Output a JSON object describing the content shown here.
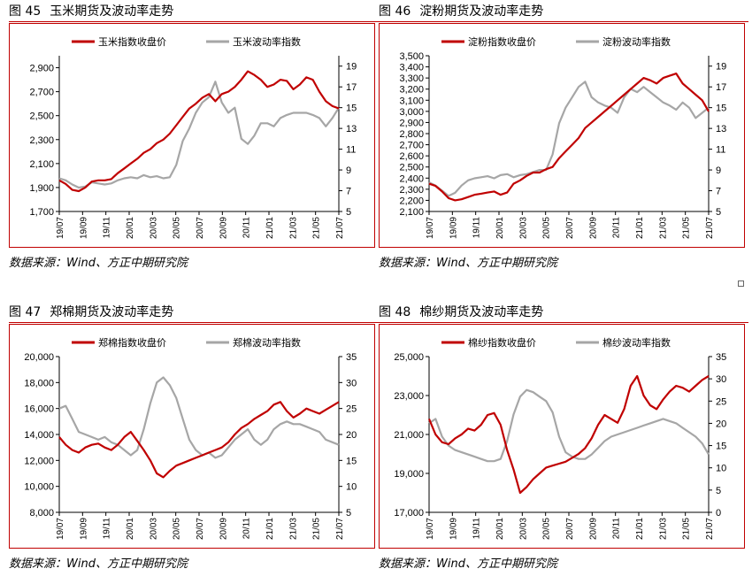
{
  "source_label": "数据来源：Wind、方正中期研究院",
  "chart_data": [
    {
      "type": "line",
      "fig_num": "图 45",
      "title": "玉米期货及波动率走势",
      "x_ticks": [
        "19/07",
        "19/09",
        "19/11",
        "20/01",
        "20/03",
        "20/05",
        "20/07",
        "20/09",
        "20/11",
        "21/01",
        "21/03",
        "21/05",
        "21/07"
      ],
      "y_left": {
        "ticks": [
          "1,700",
          "1,900",
          "2,100",
          "2,300",
          "2,500",
          "2,700",
          "2,900"
        ],
        "range": [
          1700,
          3000
        ]
      },
      "y_right": {
        "ticks": [
          "5",
          "7",
          "9",
          "11",
          "13",
          "15",
          "17",
          "19"
        ],
        "range": [
          5,
          20
        ]
      },
      "series": [
        {
          "name": "玉米指数收盘价",
          "axis": "left",
          "color": "#c00000",
          "values": [
            1960,
            1930,
            1880,
            1870,
            1900,
            1950,
            1960,
            1960,
            1970,
            2020,
            2060,
            2100,
            2140,
            2190,
            2220,
            2270,
            2300,
            2350,
            2420,
            2490,
            2560,
            2600,
            2650,
            2680,
            2620,
            2680,
            2700,
            2740,
            2800,
            2870,
            2840,
            2800,
            2740,
            2760,
            2800,
            2790,
            2720,
            2760,
            2820,
            2800,
            2700,
            2620,
            2580,
            2560
          ]
        },
        {
          "name": "玉米波动率指数",
          "axis": "right",
          "color": "#a6a6a6",
          "values": [
            8.2,
            8.0,
            7.6,
            7.3,
            7.4,
            7.8,
            7.7,
            7.6,
            7.7,
            8.0,
            8.2,
            8.3,
            8.2,
            8.5,
            8.3,
            8.4,
            8.2,
            8.3,
            9.5,
            11.8,
            13.0,
            14.5,
            15.5,
            16.0,
            17.5,
            15.5,
            14.5,
            15.0,
            12.0,
            11.5,
            12.3,
            13.5,
            13.5,
            13.2,
            14.0,
            14.3,
            14.5,
            14.5,
            14.5,
            14.3,
            14.0,
            13.2,
            14.0,
            15.0
          ]
        }
      ]
    },
    {
      "type": "line",
      "fig_num": "图 46",
      "title": "淀粉期货及波动率走势",
      "x_ticks": [
        "19/07",
        "19/09",
        "19/11",
        "20/01",
        "20/03",
        "20/05",
        "20/07",
        "20/09",
        "20/11",
        "21/01",
        "21/03",
        "21/05",
        "21/07"
      ],
      "y_left": {
        "ticks": [
          "2,100",
          "2,200",
          "2,300",
          "2,400",
          "2,500",
          "2,600",
          "2,700",
          "2,800",
          "2,900",
          "3,000",
          "3,100",
          "3,200",
          "3,300",
          "3,400",
          "3,500"
        ],
        "range": [
          2100,
          3500
        ]
      },
      "y_right": {
        "ticks": [
          "5",
          "7",
          "9",
          "11",
          "13",
          "15",
          "17",
          "19"
        ],
        "range": [
          5,
          20
        ]
      },
      "series": [
        {
          "name": "淀粉指数收盘价",
          "axis": "left",
          "color": "#c00000",
          "values": [
            2350,
            2330,
            2280,
            2220,
            2200,
            2210,
            2230,
            2250,
            2260,
            2270,
            2280,
            2250,
            2270,
            2350,
            2380,
            2420,
            2450,
            2450,
            2480,
            2500,
            2580,
            2640,
            2700,
            2760,
            2850,
            2900,
            2950,
            3000,
            3050,
            3100,
            3150,
            3200,
            3250,
            3300,
            3280,
            3250,
            3300,
            3320,
            3340,
            3250,
            3200,
            3150,
            3100,
            3000
          ]
        },
        {
          "name": "淀粉波动率指数",
          "axis": "right",
          "color": "#a6a6a6",
          "values": [
            7.8,
            7.5,
            7.0,
            6.5,
            6.8,
            7.5,
            8.0,
            8.2,
            8.3,
            8.4,
            8.2,
            8.5,
            8.6,
            8.3,
            8.5,
            8.6,
            8.8,
            9.0,
            9.0,
            10.5,
            13.5,
            15.0,
            16.0,
            17.0,
            17.5,
            16.0,
            15.5,
            15.2,
            15.0,
            14.5,
            16.0,
            16.8,
            16.5,
            17.0,
            16.5,
            16.0,
            15.5,
            15.2,
            14.8,
            15.5,
            15.0,
            14.0,
            14.5,
            15.0
          ]
        }
      ]
    },
    {
      "type": "line",
      "fig_num": "图 47",
      "title": "郑棉期货及波动率走势",
      "x_ticks": [
        "19/07",
        "19/09",
        "19/11",
        "20/01",
        "20/03",
        "20/05",
        "20/07",
        "20/09",
        "20/11",
        "21/01",
        "21/03",
        "21/05",
        "21/07"
      ],
      "y_left": {
        "ticks": [
          "8,000",
          "10,000",
          "12,000",
          "14,000",
          "16,000",
          "18,000",
          "20,000"
        ],
        "range": [
          8000,
          20000
        ]
      },
      "y_right": {
        "ticks": [
          "5",
          "10",
          "15",
          "20",
          "25",
          "30",
          "35"
        ],
        "range": [
          5,
          35
        ]
      },
      "series": [
        {
          "name": "郑棉指数收盘价",
          "axis": "left",
          "color": "#c00000",
          "values": [
            13800,
            13200,
            12800,
            12600,
            13000,
            13200,
            13300,
            13000,
            12800,
            13200,
            13800,
            14200,
            13500,
            12800,
            12000,
            11000,
            10700,
            11200,
            11600,
            11800,
            12000,
            12200,
            12400,
            12600,
            12800,
            13000,
            13400,
            14000,
            14500,
            14800,
            15200,
            15500,
            15800,
            16300,
            16500,
            15800,
            15300,
            15600,
            16000,
            15800,
            15600,
            15900,
            16200,
            16500
          ]
        },
        {
          "name": "郑棉波动率指数",
          "axis": "right",
          "color": "#a6a6a6",
          "values": [
            25.0,
            25.5,
            23.0,
            20.5,
            20.0,
            19.5,
            19.0,
            19.5,
            18.5,
            18.0,
            17.0,
            16.0,
            17.0,
            21.0,
            26.0,
            30.0,
            31.0,
            29.5,
            27.0,
            23.0,
            19.0,
            17.0,
            16.0,
            16.5,
            15.5,
            16.0,
            17.5,
            19.0,
            20.0,
            21.0,
            19.0,
            18.0,
            19.0,
            21.0,
            22.0,
            22.5,
            22.0,
            22.0,
            21.5,
            21.0,
            20.5,
            19.0,
            18.5,
            18.0
          ]
        }
      ]
    },
    {
      "type": "line",
      "fig_num": "图 48",
      "title": "棉纱期货及波动率走势",
      "x_ticks": [
        "19/07",
        "19/09",
        "19/11",
        "20/01",
        "20/03",
        "20/05",
        "20/07",
        "20/09",
        "20/11",
        "21/01",
        "21/03",
        "21/05",
        "21/07"
      ],
      "y_left": {
        "ticks": [
          "17,000",
          "19,000",
          "21,000",
          "23,000",
          "25,000"
        ],
        "range": [
          17000,
          25000
        ]
      },
      "y_right": {
        "ticks": [
          "0",
          "5",
          "10",
          "15",
          "20",
          "25",
          "30",
          "35"
        ],
        "range": [
          0,
          35
        ]
      },
      "series": [
        {
          "name": "棉纱指数收盘价",
          "axis": "left",
          "color": "#c00000",
          "values": [
            21800,
            21000,
            20600,
            20500,
            20800,
            21000,
            21300,
            21200,
            21500,
            22000,
            22100,
            21500,
            20200,
            19200,
            18000,
            18300,
            18700,
            19000,
            19300,
            19400,
            19500,
            19600,
            19800,
            20000,
            20300,
            20800,
            21500,
            22000,
            21800,
            21600,
            22300,
            23500,
            24000,
            23000,
            22500,
            22300,
            22800,
            23200,
            23500,
            23400,
            23200,
            23500,
            23800,
            24000
          ]
        },
        {
          "name": "棉纱波动率指数",
          "axis": "right",
          "color": "#a6a6a6",
          "values": [
            20.0,
            21.0,
            17.0,
            15.0,
            14.0,
            13.5,
            13.0,
            12.5,
            12.0,
            11.5,
            11.5,
            12.0,
            16.0,
            22.0,
            26.0,
            27.5,
            27.0,
            26.0,
            25.0,
            22.5,
            17.0,
            13.5,
            12.5,
            12.0,
            12.0,
            13.0,
            14.5,
            16.0,
            17.0,
            17.5,
            18.0,
            18.5,
            19.0,
            19.5,
            20.0,
            20.5,
            21.0,
            20.5,
            20.0,
            19.0,
            18.0,
            17.0,
            15.5,
            13.0
          ]
        }
      ]
    }
  ]
}
